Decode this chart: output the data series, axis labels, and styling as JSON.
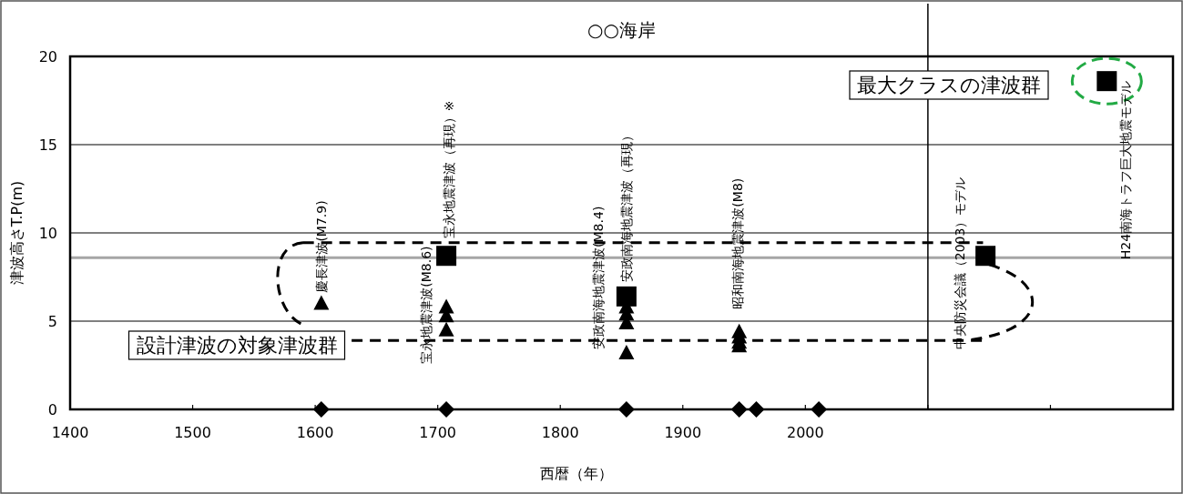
{
  "chart_data": {
    "type": "scatter",
    "title": "○○海岸",
    "xlabel": "西暦（年）",
    "ylabel": "津波高さT.P(m)",
    "xlim": [
      1400,
      2300
    ],
    "ylim": [
      0,
      20
    ],
    "xticks": [
      1400,
      1500,
      1600,
      1700,
      1800,
      1900,
      2000,
      {
        "value": 2100,
        "label": null
      },
      {
        "value": 2200,
        "label": null
      }
    ],
    "yticks": [
      0,
      5,
      10,
      15,
      20
    ],
    "grid": "y",
    "ref_lines": [
      {
        "axis": "y",
        "value": 8.6,
        "color": "#a6a6a6"
      },
      {
        "axis": "x",
        "value": 2100,
        "color": "#000000"
      }
    ],
    "series": [
      {
        "color": "#000000",
        "marker": "square",
        "x": [
          1707,
          1854,
          2147,
          2246
        ],
        "values": [
          8.7,
          6.4,
          8.7,
          18.6
        ]
      },
      {
        "color": "#000000",
        "marker": "triangle",
        "x": [
          1605,
          1707,
          1707,
          1707,
          1854,
          1854,
          1854,
          1854,
          1946,
          1946,
          1946,
          1946
        ],
        "values": [
          6.0,
          5.8,
          5.3,
          4.5,
          5.8,
          5.4,
          4.9,
          3.2,
          4.4,
          4.1,
          3.8,
          3.6
        ]
      },
      {
        "color": "#000000",
        "marker": "diamond",
        "x": [
          1605,
          1707,
          1854,
          1946,
          1960,
          2011
        ],
        "values": [
          0,
          0,
          0,
          0,
          0,
          0
        ]
      }
    ],
    "annotations": [
      {
        "text": "慶長津波(M7.9)",
        "x": 1605,
        "y": 6.0
      },
      {
        "text": "宝永地震津波(M8.6)",
        "x": 1707,
        "y": 4.5
      },
      {
        "text": "宝永地震津波（再現）※",
        "x": 1707,
        "y": 8.7
      },
      {
        "text": "安政南海地震津波(M8.4)",
        "x": 1854,
        "y": 3.2
      },
      {
        "text": "安政南海地震津波（再現）",
        "x": 1854,
        "y": 6.4
      },
      {
        "text": "昭和南海地震津波(M8)",
        "x": 1946,
        "y": 4.4
      },
      {
        "text": "中央防災会議（2003）モデル",
        "x": 2147,
        "y": 8.7
      },
      {
        "text": "H24南海トラフ巨大地震モデル",
        "x": 2246,
        "y": 18.6
      },
      "最大クラスの津波群",
      "設計津波の対象津波群"
    ]
  }
}
